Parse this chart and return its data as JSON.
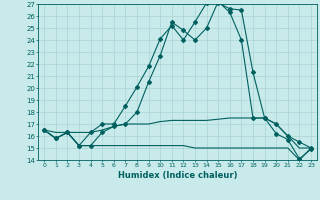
{
  "title": "",
  "xlabel": "Humidex (Indice chaleur)",
  "ylabel": "",
  "xlim": [
    -0.5,
    23.5
  ],
  "ylim": [
    14,
    27
  ],
  "yticks": [
    14,
    15,
    16,
    17,
    18,
    19,
    20,
    21,
    22,
    23,
    24,
    25,
    26,
    27
  ],
  "xticks": [
    0,
    1,
    2,
    3,
    4,
    5,
    6,
    7,
    8,
    9,
    10,
    11,
    12,
    13,
    14,
    15,
    16,
    17,
    18,
    19,
    20,
    21,
    22,
    23
  ],
  "bg_color": "#c8eaea",
  "line_color": "#006060",
  "grid_color": "#aad4d4",
  "series": [
    {
      "x": [
        0,
        1,
        2,
        3,
        4,
        5,
        6,
        7,
        8,
        9,
        10,
        11,
        12,
        13,
        14,
        15,
        16,
        17,
        18,
        19,
        20,
        21,
        22,
        23
      ],
      "y": [
        16.5,
        15.8,
        16.3,
        15.2,
        16.3,
        17.0,
        17.0,
        18.5,
        20.1,
        21.8,
        24.1,
        25.2,
        24.0,
        25.5,
        27.1,
        27.1,
        26.6,
        26.5,
        21.3,
        17.5,
        16.2,
        15.7,
        14.1,
        14.9
      ],
      "marker": "D",
      "markersize": 2.0,
      "linewidth": 0.8
    },
    {
      "x": [
        0,
        1,
        2,
        3,
        4,
        5,
        6,
        7,
        8,
        9,
        10,
        11,
        12,
        13,
        14,
        15,
        16,
        17,
        18,
        19,
        20,
        21,
        22,
        23
      ],
      "y": [
        16.5,
        15.8,
        16.3,
        15.2,
        15.2,
        16.3,
        16.8,
        17.0,
        18.0,
        20.5,
        22.7,
        25.5,
        24.8,
        24.0,
        25.0,
        27.2,
        26.3,
        24.0,
        17.5,
        17.5,
        17.0,
        16.0,
        15.5,
        15.0
      ],
      "marker": "D",
      "markersize": 2.0,
      "linewidth": 0.8
    },
    {
      "x": [
        0,
        1,
        2,
        3,
        4,
        5,
        6,
        7,
        8,
        9,
        10,
        11,
        12,
        13,
        14,
        15,
        16,
        17,
        18,
        19,
        20,
        21,
        22,
        23
      ],
      "y": [
        16.5,
        16.3,
        16.3,
        16.3,
        16.3,
        16.5,
        16.8,
        17.0,
        17.0,
        17.0,
        17.2,
        17.3,
        17.3,
        17.3,
        17.3,
        17.4,
        17.5,
        17.5,
        17.5,
        17.5,
        17.0,
        16.0,
        15.0,
        15.0
      ],
      "marker": null,
      "markersize": 0,
      "linewidth": 0.8
    },
    {
      "x": [
        0,
        1,
        2,
        3,
        4,
        5,
        6,
        7,
        8,
        9,
        10,
        11,
        12,
        13,
        14,
        15,
        16,
        17,
        18,
        19,
        20,
        21,
        22,
        23
      ],
      "y": [
        16.5,
        15.8,
        16.3,
        15.2,
        15.2,
        15.2,
        15.2,
        15.2,
        15.2,
        15.2,
        15.2,
        15.2,
        15.2,
        15.0,
        15.0,
        15.0,
        15.0,
        15.0,
        15.0,
        15.0,
        15.0,
        15.0,
        14.0,
        15.0
      ],
      "marker": null,
      "markersize": 0,
      "linewidth": 0.8
    }
  ]
}
